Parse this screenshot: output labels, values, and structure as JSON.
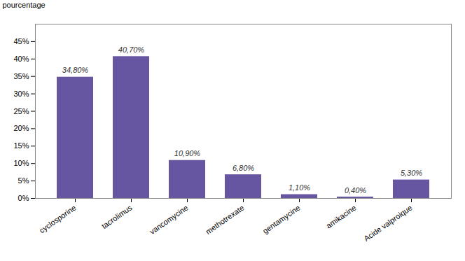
{
  "chart_data": {
    "type": "bar",
    "categories": [
      "cyclosporine",
      "tacrolimus",
      "vancomycine",
      "methotrexate",
      "gentamycine",
      "amikacine",
      "Acide valproique"
    ],
    "values": [
      34.8,
      40.7,
      10.9,
      6.8,
      1.1,
      0.4,
      5.3
    ],
    "value_labels": [
      "34,80%",
      "40,70%",
      "10,90%",
      "6,80%",
      "1,10%",
      "0,40%",
      "5,30%"
    ],
    "data_labels": true,
    "color": "#6655a0",
    "ylabel": "pourcentage",
    "ylim": [
      0,
      50
    ],
    "yticks": [
      {
        "value": 0,
        "label": "0%"
      },
      {
        "value": 5,
        "label": "5%"
      },
      {
        "value": 10,
        "label": "10%"
      },
      {
        "value": 15,
        "label": "15%"
      },
      {
        "value": 20,
        "label": "20%"
      },
      {
        "value": 25,
        "label": "25%"
      },
      {
        "value": 30,
        "label": "30%"
      },
      {
        "value": 35,
        "label": "35%"
      },
      {
        "value": 40,
        "label": "40%"
      },
      {
        "value": 45,
        "label": "45%"
      }
    ],
    "grid": false
  }
}
